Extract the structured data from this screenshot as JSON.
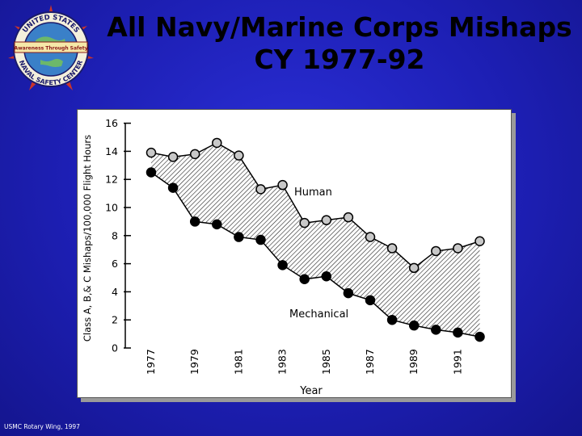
{
  "header": {
    "title_line1": "All Navy/Marine Corps Mishaps",
    "title_line2": "CY 1977-92"
  },
  "logo": {
    "icon": "naval-safety-center-seal-icon",
    "top_text": "UNITED STATES",
    "banner_text": "Awareness Through Safety",
    "bottom_text": "NAVAL SAFETY CENTER"
  },
  "footer": {
    "text": "USMC Rotary Wing, 1997"
  },
  "colors": {
    "background": "#1d1fb4",
    "human_marker": "#c8c8c8",
    "mechanical_marker": "#000000"
  },
  "chart_data": {
    "type": "line",
    "title": "All Navy/Marine Corps Mishaps CY 1977-92",
    "xlabel": "Year",
    "ylabel": "Class A, B,& C Mishaps/100,000 Flight Hours",
    "x": [
      1977,
      1978,
      1979,
      1980,
      1981,
      1982,
      1983,
      1984,
      1985,
      1986,
      1987,
      1988,
      1989,
      1990,
      1991,
      1992
    ],
    "x_tick_labels": [
      "1977",
      "1979",
      "1981",
      "1983",
      "1985",
      "1987",
      "1989",
      "1991"
    ],
    "y_ticks": [
      0,
      2,
      4,
      6,
      8,
      10,
      12,
      14,
      16
    ],
    "ylim": [
      0,
      16
    ],
    "series": [
      {
        "name": "Human",
        "values": [
          13.9,
          13.6,
          13.8,
          14.6,
          13.7,
          11.3,
          11.6,
          8.9,
          9.1,
          9.3,
          7.9,
          7.1,
          5.7,
          6.9,
          7.1,
          7.6
        ]
      },
      {
        "name": "Mechanical",
        "values": [
          12.5,
          11.4,
          9.0,
          8.8,
          7.9,
          7.7,
          5.9,
          4.9,
          5.1,
          3.9,
          3.4,
          2.0,
          1.6,
          1.3,
          1.1,
          0.8
        ]
      }
    ],
    "annotations": [
      "Human",
      "Mechanical"
    ],
    "fill_between": "hatched",
    "grid": false
  }
}
